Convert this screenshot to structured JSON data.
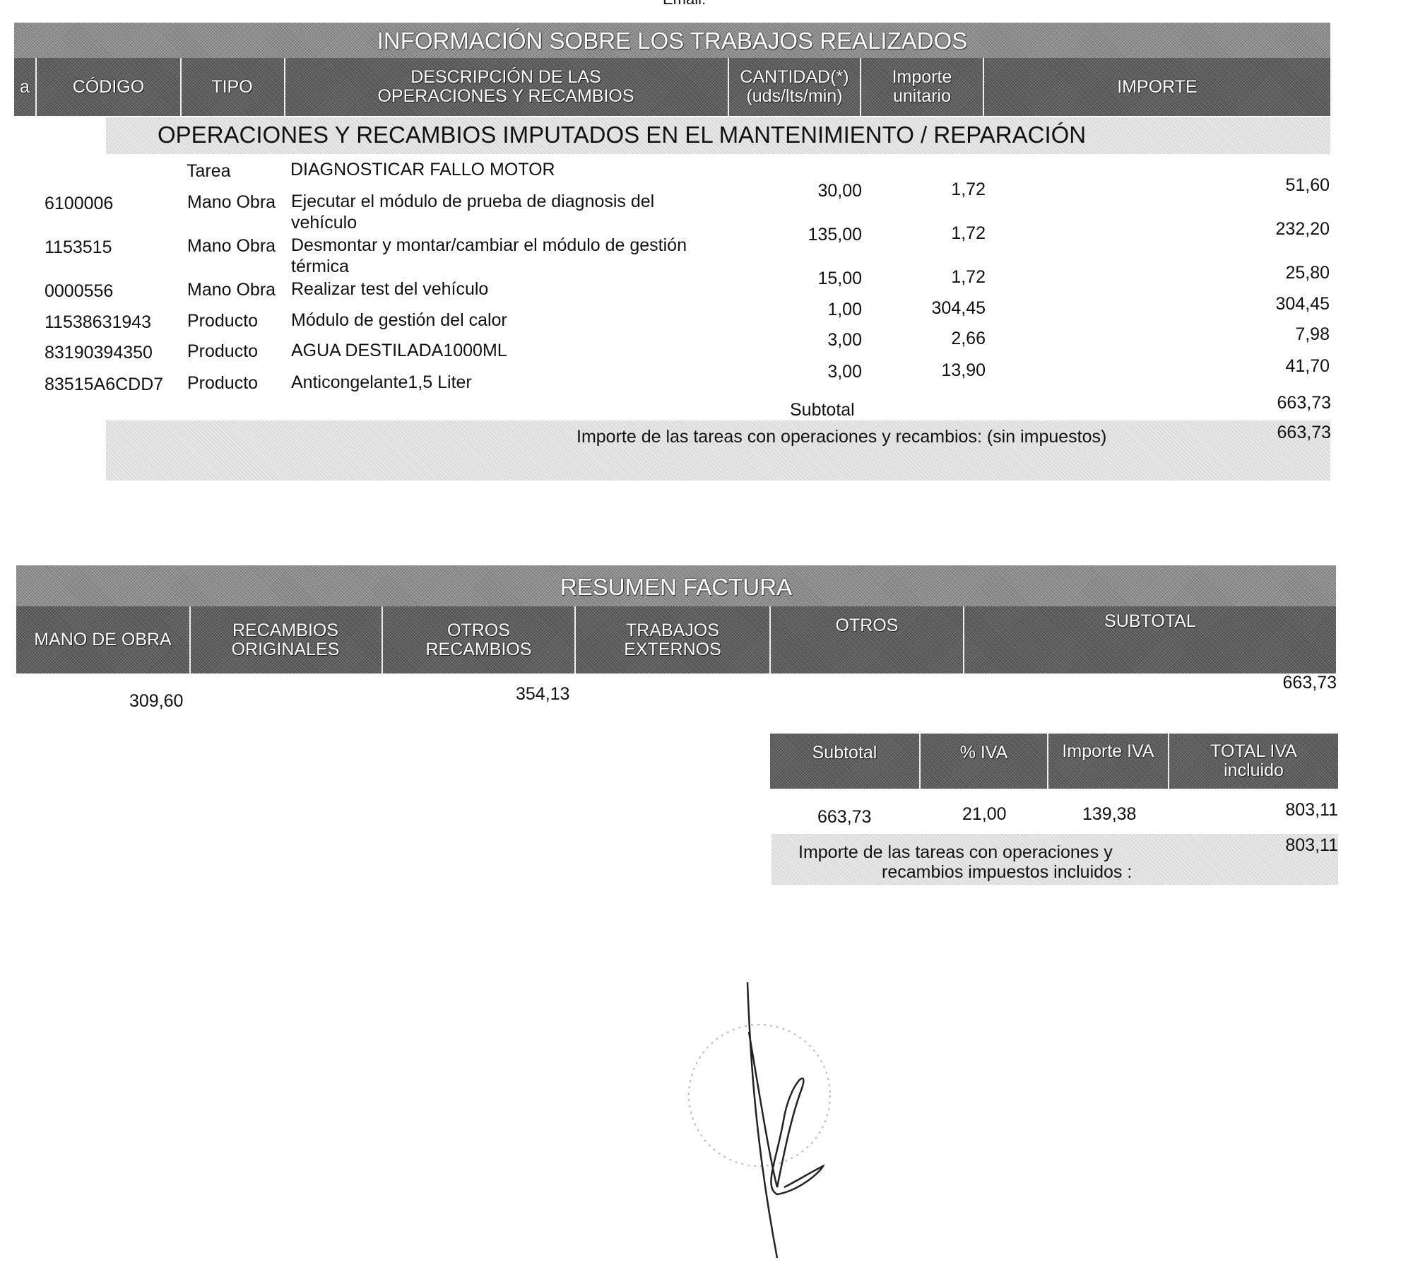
{
  "top_label": "Email:",
  "works": {
    "title": "INFORMACIÓN SOBRE LOS TRABAJOS REALIZADOS",
    "columns": [
      "a",
      "CÓDIGO",
      "TIPO",
      "DESCRIPCIÓN DE LAS OPERACIONES Y RECAMBIOS",
      "CANTIDAD(*) (uds/lts/min)",
      "Importe unitario",
      "IMPORTE"
    ],
    "section_title": "OPERACIONES Y RECAMBIOS IMPUTADOS EN EL MANTENIMIENTO / REPARACIÓN",
    "task": {
      "label": "Tarea",
      "name": "DIAGNOSTICAR FALLO MOTOR"
    },
    "rows": [
      {
        "code": "6100006",
        "type": "Mano Obra",
        "desc": "Ejecutar el módulo de prueba de diagnosis del vehículo",
        "qty": "30,00",
        "unit": "1,72",
        "amount": "51,60"
      },
      {
        "code": "1153515",
        "type": "Mano Obra",
        "desc": "Desmontar y montar/cambiar el módulo de gestión térmica",
        "qty": "135,00",
        "unit": "1,72",
        "amount": "232,20"
      },
      {
        "code": "0000556",
        "type": "Mano Obra",
        "desc": "Realizar test del vehículo",
        "qty": "15,00",
        "unit": "1,72",
        "amount": "25,80"
      },
      {
        "code": "11538631943",
        "type": "Producto",
        "desc": "Módulo de gestión del calor",
        "qty": "1,00",
        "unit": "304,45",
        "amount": "304,45"
      },
      {
        "code": "83190394350",
        "type": "Producto",
        "desc": "AGUA DESTILADA1000ML",
        "qty": "3,00",
        "unit": "2,66",
        "amount": "7,98"
      },
      {
        "code": "83515A6CDD7",
        "type": "Producto",
        "desc": "Anticongelante1,5 Liter",
        "qty": "3,00",
        "unit": "13,90",
        "amount": "41,70"
      }
    ],
    "subtotal_label": "Subtotal",
    "subtotal": "663,73",
    "total_label": "Importe  de las tareas con operaciones y recambios: (sin impuestos)",
    "total": "663,73"
  },
  "summary": {
    "title": "RESUMEN FACTURA",
    "columns": [
      "MANO DE OBRA",
      "RECAMBIOS ORIGINALES",
      "OTROS RECAMBIOS",
      "TRABAJOS EXTERNOS",
      "OTROS",
      "SUBTOTAL"
    ],
    "values": {
      "mano_obra": "309,60",
      "otros_recambios": "354,13",
      "subtotal": "663,73"
    },
    "iva_columns": [
      "Subtotal",
      "% IVA",
      "Importe IVA",
      "TOTAL IVA incluido"
    ],
    "iva_values": [
      "663,73",
      "21,00",
      "139,38",
      "803,11"
    ],
    "final_label_1": "Importe  de las tareas con operaciones y",
    "final_label_2": "recambios impuestos incluidos :",
    "final_total": "803,11"
  }
}
